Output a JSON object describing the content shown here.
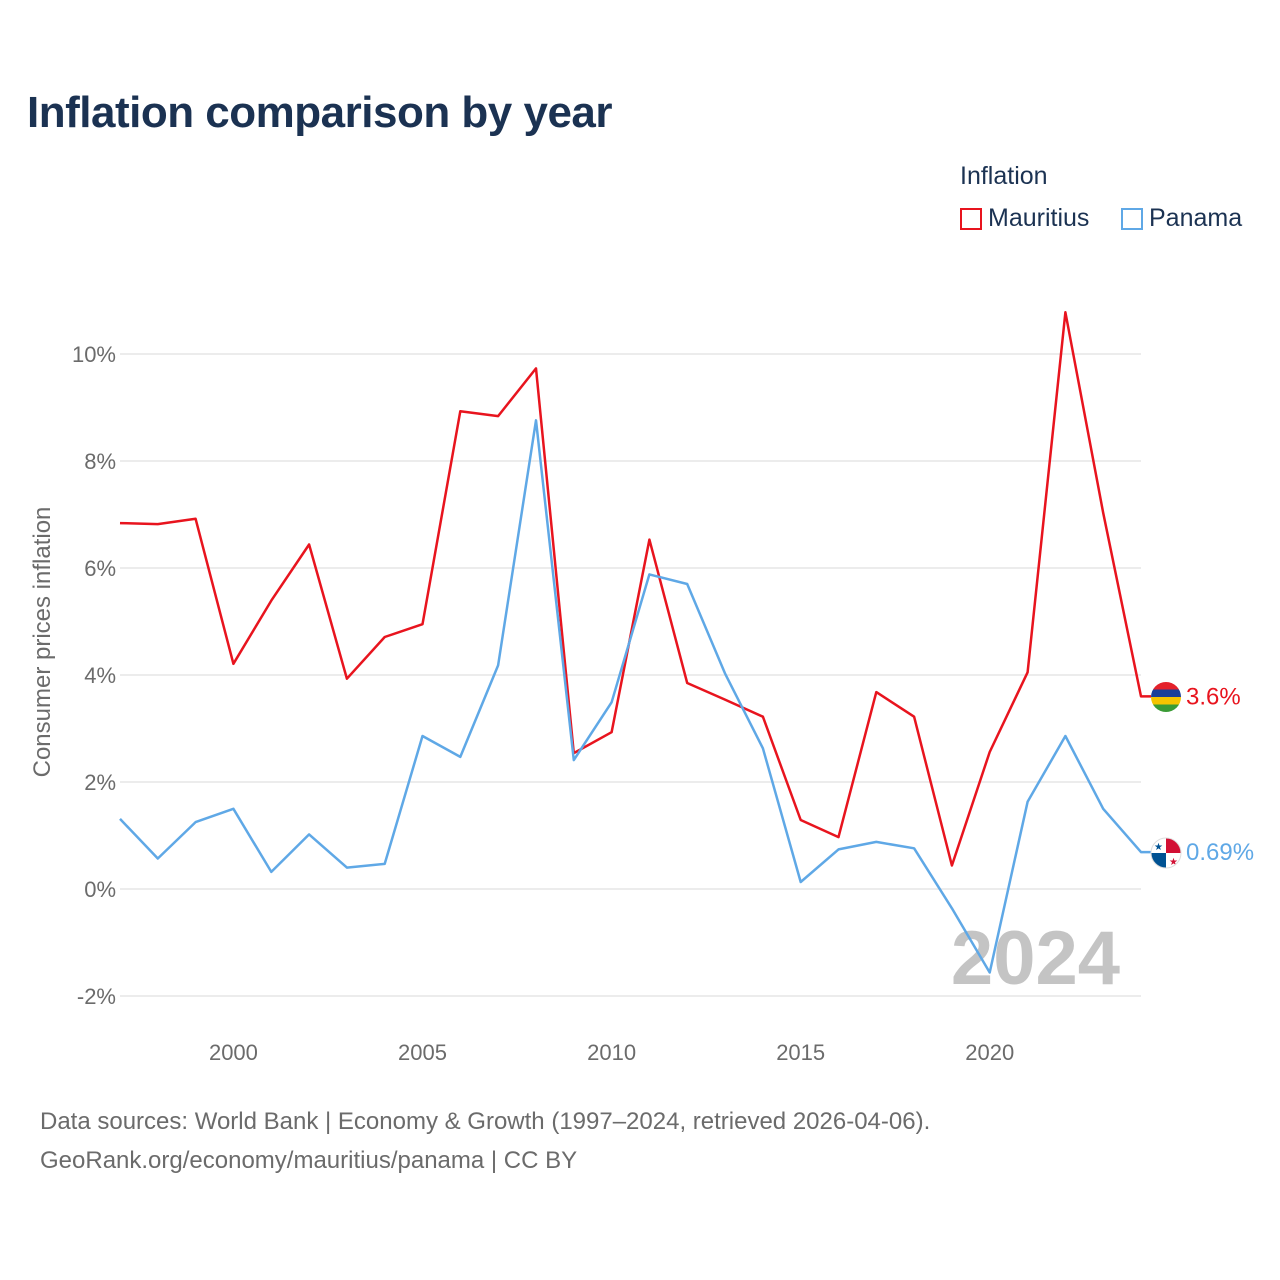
{
  "chart_data": {
    "type": "line",
    "title": "Inflation comparison by year",
    "ylabel": "Consumer prices inflation",
    "xlabel": "",
    "x": [
      1997,
      1998,
      1999,
      2000,
      2001,
      2002,
      2003,
      2004,
      2005,
      2006,
      2007,
      2008,
      2009,
      2010,
      2011,
      2012,
      2013,
      2014,
      2015,
      2016,
      2017,
      2018,
      2019,
      2020,
      2021,
      2022,
      2023,
      2024
    ],
    "xlim": [
      1997,
      2024
    ],
    "ylim": [
      -2.5,
      11
    ],
    "y_ticks": [
      -2,
      0,
      2,
      4,
      6,
      8,
      10
    ],
    "y_tick_labels": [
      "-2%",
      "0%",
      "2%",
      "4%",
      "6%",
      "8%",
      "10%"
    ],
    "x_ticks": [
      2000,
      2005,
      2010,
      2015,
      2020
    ],
    "x_tick_labels": [
      "2000",
      "2005",
      "2010",
      "2015",
      "2020"
    ],
    "legend": {
      "title": "Inflation",
      "position": "top-right"
    },
    "series": [
      {
        "name": "Mauritius",
        "color": "#e8141e",
        "end_label": "3.6%",
        "flag": "mauritius-flag",
        "values": [
          6.84,
          6.82,
          6.92,
          4.21,
          5.39,
          6.44,
          3.93,
          4.71,
          4.95,
          8.93,
          8.84,
          9.73,
          2.54,
          2.93,
          6.53,
          3.85,
          3.54,
          3.22,
          1.29,
          0.97,
          3.68,
          3.22,
          0.44,
          2.56,
          4.05,
          10.78,
          7.03,
          3.6
        ]
      },
      {
        "name": "Panama",
        "color": "#5fa8e6",
        "end_label": "0.69%",
        "flag": "panama-flag",
        "values": [
          1.31,
          0.57,
          1.25,
          1.5,
          0.32,
          1.02,
          0.4,
          0.47,
          2.86,
          2.47,
          4.18,
          8.76,
          2.41,
          3.49,
          5.88,
          5.7,
          4.03,
          2.63,
          0.13,
          0.74,
          0.88,
          0.76,
          -0.36,
          -1.56,
          1.63,
          2.86,
          1.5,
          0.69
        ]
      }
    ],
    "watermark": "2024"
  },
  "sources": {
    "line1": "Data sources: World Bank | Economy & Growth (1997–2024, retrieved 2026-04-06).",
    "line2": "GeoRank.org/economy/mauritius/panama | CC BY"
  }
}
